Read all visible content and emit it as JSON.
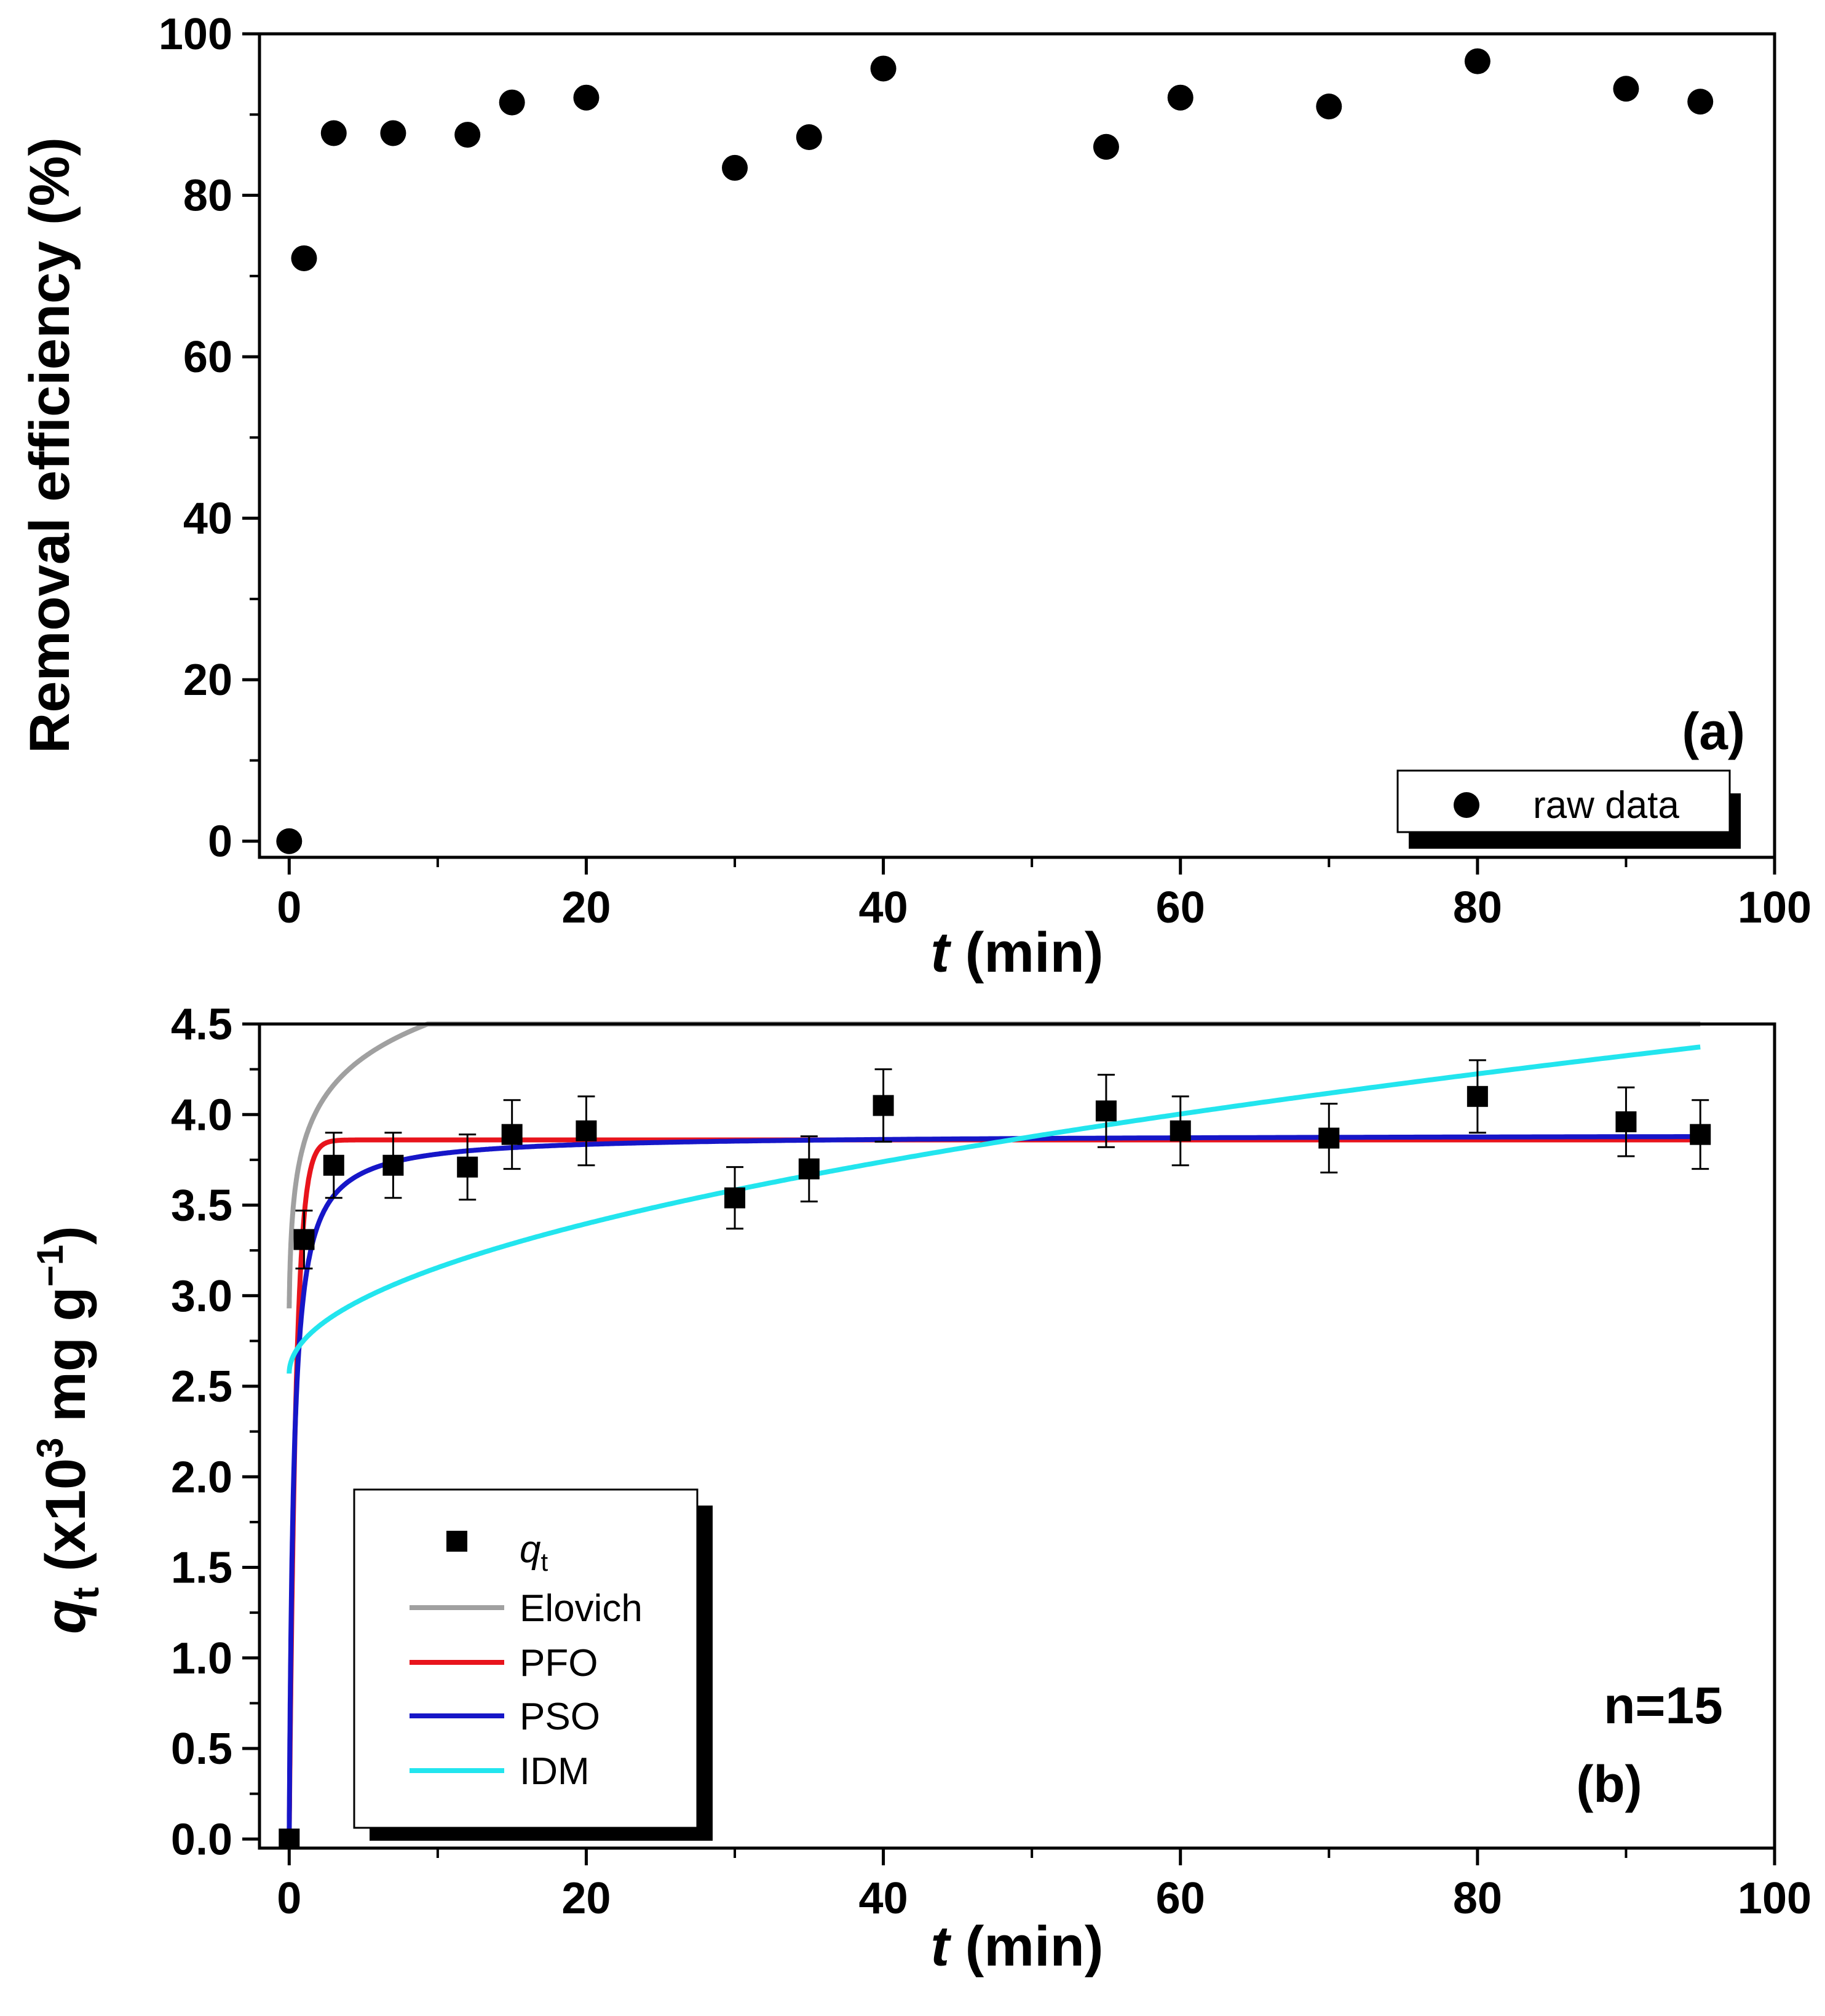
{
  "chart_data": [
    {
      "type": "scatter",
      "panel_label": "(a)",
      "xlabel_italic": "t",
      "xlabel_rest": " (min)",
      "ylabel": "Removal efficiency (%)",
      "xlim": [
        -2,
        100
      ],
      "ylim": [
        -2,
        100
      ],
      "x_ticks": [
        0,
        20,
        40,
        60,
        80,
        100
      ],
      "y_ticks": [
        0,
        20,
        40,
        60,
        80,
        100
      ],
      "grid": false,
      "legend_position": "bottom-right",
      "series": [
        {
          "name": "raw data",
          "marker": "circle",
          "color": "#000000",
          "x": [
            0,
            1,
            3,
            7,
            12,
            15,
            20,
            30,
            35,
            40,
            55,
            60,
            70,
            80,
            90,
            95
          ],
          "y": [
            0,
            72.2,
            87.7,
            87.7,
            87.5,
            91.5,
            92.1,
            83.4,
            87.2,
            95.7,
            86.0,
            92.1,
            91.0,
            96.6,
            93.2,
            91.6
          ]
        }
      ]
    },
    {
      "type": "scatter",
      "panel_label": "(b)",
      "annotation": "n=15",
      "xlabel_italic": "t",
      "xlabel_rest": " (min)",
      "ylabel": "q",
      "ylabel_sub": "t",
      "ylabel_rest": " (x10",
      "ylabel_sup": "3",
      "ylabel_tail": " mg g",
      "ylabel_tail_sup": "−1",
      "ylabel_close": ")",
      "xlim": [
        -2,
        100
      ],
      "ylim": [
        -0.05,
        4.5
      ],
      "x_ticks": [
        0,
        20,
        40,
        60,
        80,
        100
      ],
      "y_ticks": [
        0.0,
        0.5,
        1.0,
        1.5,
        2.0,
        2.5,
        3.0,
        3.5,
        4.0,
        4.5
      ],
      "y_tick_labels": [
        "0.0",
        "0.5",
        "1.0",
        "1.5",
        "2.0",
        "2.5",
        "3.0",
        "3.5",
        "4.0",
        "4.5"
      ],
      "grid": false,
      "legend_position": "bottom-left",
      "points": {
        "name": "q",
        "name_sub": "t",
        "marker": "square",
        "color": "#000000",
        "x": [
          0,
          1,
          3,
          7,
          12,
          15,
          20,
          30,
          35,
          40,
          55,
          60,
          70,
          80,
          90,
          95
        ],
        "y": [
          0,
          3.31,
          3.72,
          3.72,
          3.71,
          3.89,
          3.91,
          3.54,
          3.7,
          4.05,
          4.02,
          3.91,
          3.87,
          4.1,
          3.96,
          3.89
        ],
        "error": [
          0,
          0.16,
          0.18,
          0.18,
          0.18,
          0.19,
          0.19,
          0.17,
          0.18,
          0.2,
          0.2,
          0.19,
          0.19,
          0.2,
          0.19,
          0.19
        ]
      },
      "models": [
        {
          "name": "Elovich",
          "color": "#A0A0A0",
          "formula": "elovich",
          "params": {
            "a": 2.93,
            "b": 0.3,
            "c": 0.05
          }
        },
        {
          "name": "PFO",
          "color": "#E8141C",
          "formula": "pfo",
          "params": {
            "qe": 3.86,
            "k": 2.2
          }
        },
        {
          "name": "PSO",
          "color": "#1616C8",
          "formula": "pso",
          "params": {
            "qe": 3.89,
            "k": 0.9
          }
        },
        {
          "name": "IDM",
          "color": "#22E5EE",
          "formula": "idm",
          "params": {
            "C": 2.57,
            "k": 0.185
          }
        }
      ]
    }
  ]
}
